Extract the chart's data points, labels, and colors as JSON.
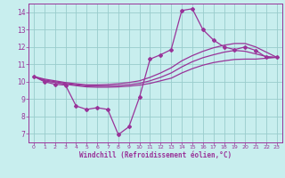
{
  "bg_color": "#c8eeee",
  "line_color": "#993399",
  "grid_color": "#99cccc",
  "xlabel": "Windchill (Refroidissement éolien,°C)",
  "xlabel_color": "#993399",
  "yticks": [
    7,
    8,
    9,
    10,
    11,
    12,
    13,
    14
  ],
  "xticks": [
    0,
    1,
    2,
    3,
    4,
    5,
    6,
    7,
    8,
    9,
    10,
    11,
    12,
    13,
    14,
    15,
    16,
    17,
    18,
    19,
    20,
    21,
    22,
    23
  ],
  "xlim": [
    -0.5,
    23.5
  ],
  "ylim": [
    6.5,
    14.5
  ],
  "line1_x": [
    0,
    1,
    2,
    3,
    4,
    5,
    6,
    7,
    8,
    9,
    10,
    11,
    12,
    13,
    14,
    15,
    16,
    17,
    18,
    19,
    20,
    21,
    22,
    23
  ],
  "line1_y": [
    10.3,
    10.0,
    9.85,
    9.8,
    8.6,
    8.4,
    8.5,
    8.4,
    6.95,
    7.4,
    9.1,
    11.3,
    11.55,
    11.85,
    14.1,
    14.2,
    13.0,
    12.4,
    12.0,
    11.85,
    12.0,
    11.8,
    11.4,
    11.4
  ],
  "line2_x": [
    0,
    1,
    2,
    3,
    4,
    5,
    6,
    7,
    8,
    9,
    10,
    11,
    12,
    13,
    14,
    15,
    16,
    17,
    18,
    19,
    20,
    21,
    22,
    23
  ],
  "line2_y": [
    10.3,
    10.15,
    10.05,
    9.95,
    9.88,
    9.82,
    9.82,
    9.84,
    9.88,
    9.95,
    10.05,
    10.25,
    10.5,
    10.8,
    11.2,
    11.5,
    11.75,
    11.95,
    12.1,
    12.2,
    12.2,
    12.0,
    11.7,
    11.4
  ],
  "line3_x": [
    0,
    1,
    2,
    3,
    4,
    5,
    6,
    7,
    8,
    9,
    10,
    11,
    12,
    13,
    14,
    15,
    16,
    17,
    18,
    19,
    20,
    21,
    22,
    23
  ],
  "line3_y": [
    10.3,
    10.1,
    10.0,
    9.9,
    9.82,
    9.76,
    9.75,
    9.76,
    9.78,
    9.83,
    9.9,
    10.05,
    10.25,
    10.5,
    10.85,
    11.15,
    11.38,
    11.55,
    11.7,
    11.8,
    11.75,
    11.6,
    11.45,
    11.4
  ],
  "line4_x": [
    0,
    1,
    2,
    3,
    4,
    5,
    6,
    7,
    8,
    9,
    10,
    11,
    12,
    13,
    14,
    15,
    16,
    17,
    18,
    19,
    20,
    21,
    22,
    23
  ],
  "line4_y": [
    10.3,
    10.05,
    9.95,
    9.85,
    9.77,
    9.7,
    9.68,
    9.68,
    9.7,
    9.74,
    9.8,
    9.9,
    10.05,
    10.2,
    10.5,
    10.75,
    10.95,
    11.1,
    11.2,
    11.28,
    11.3,
    11.3,
    11.35,
    11.4
  ]
}
